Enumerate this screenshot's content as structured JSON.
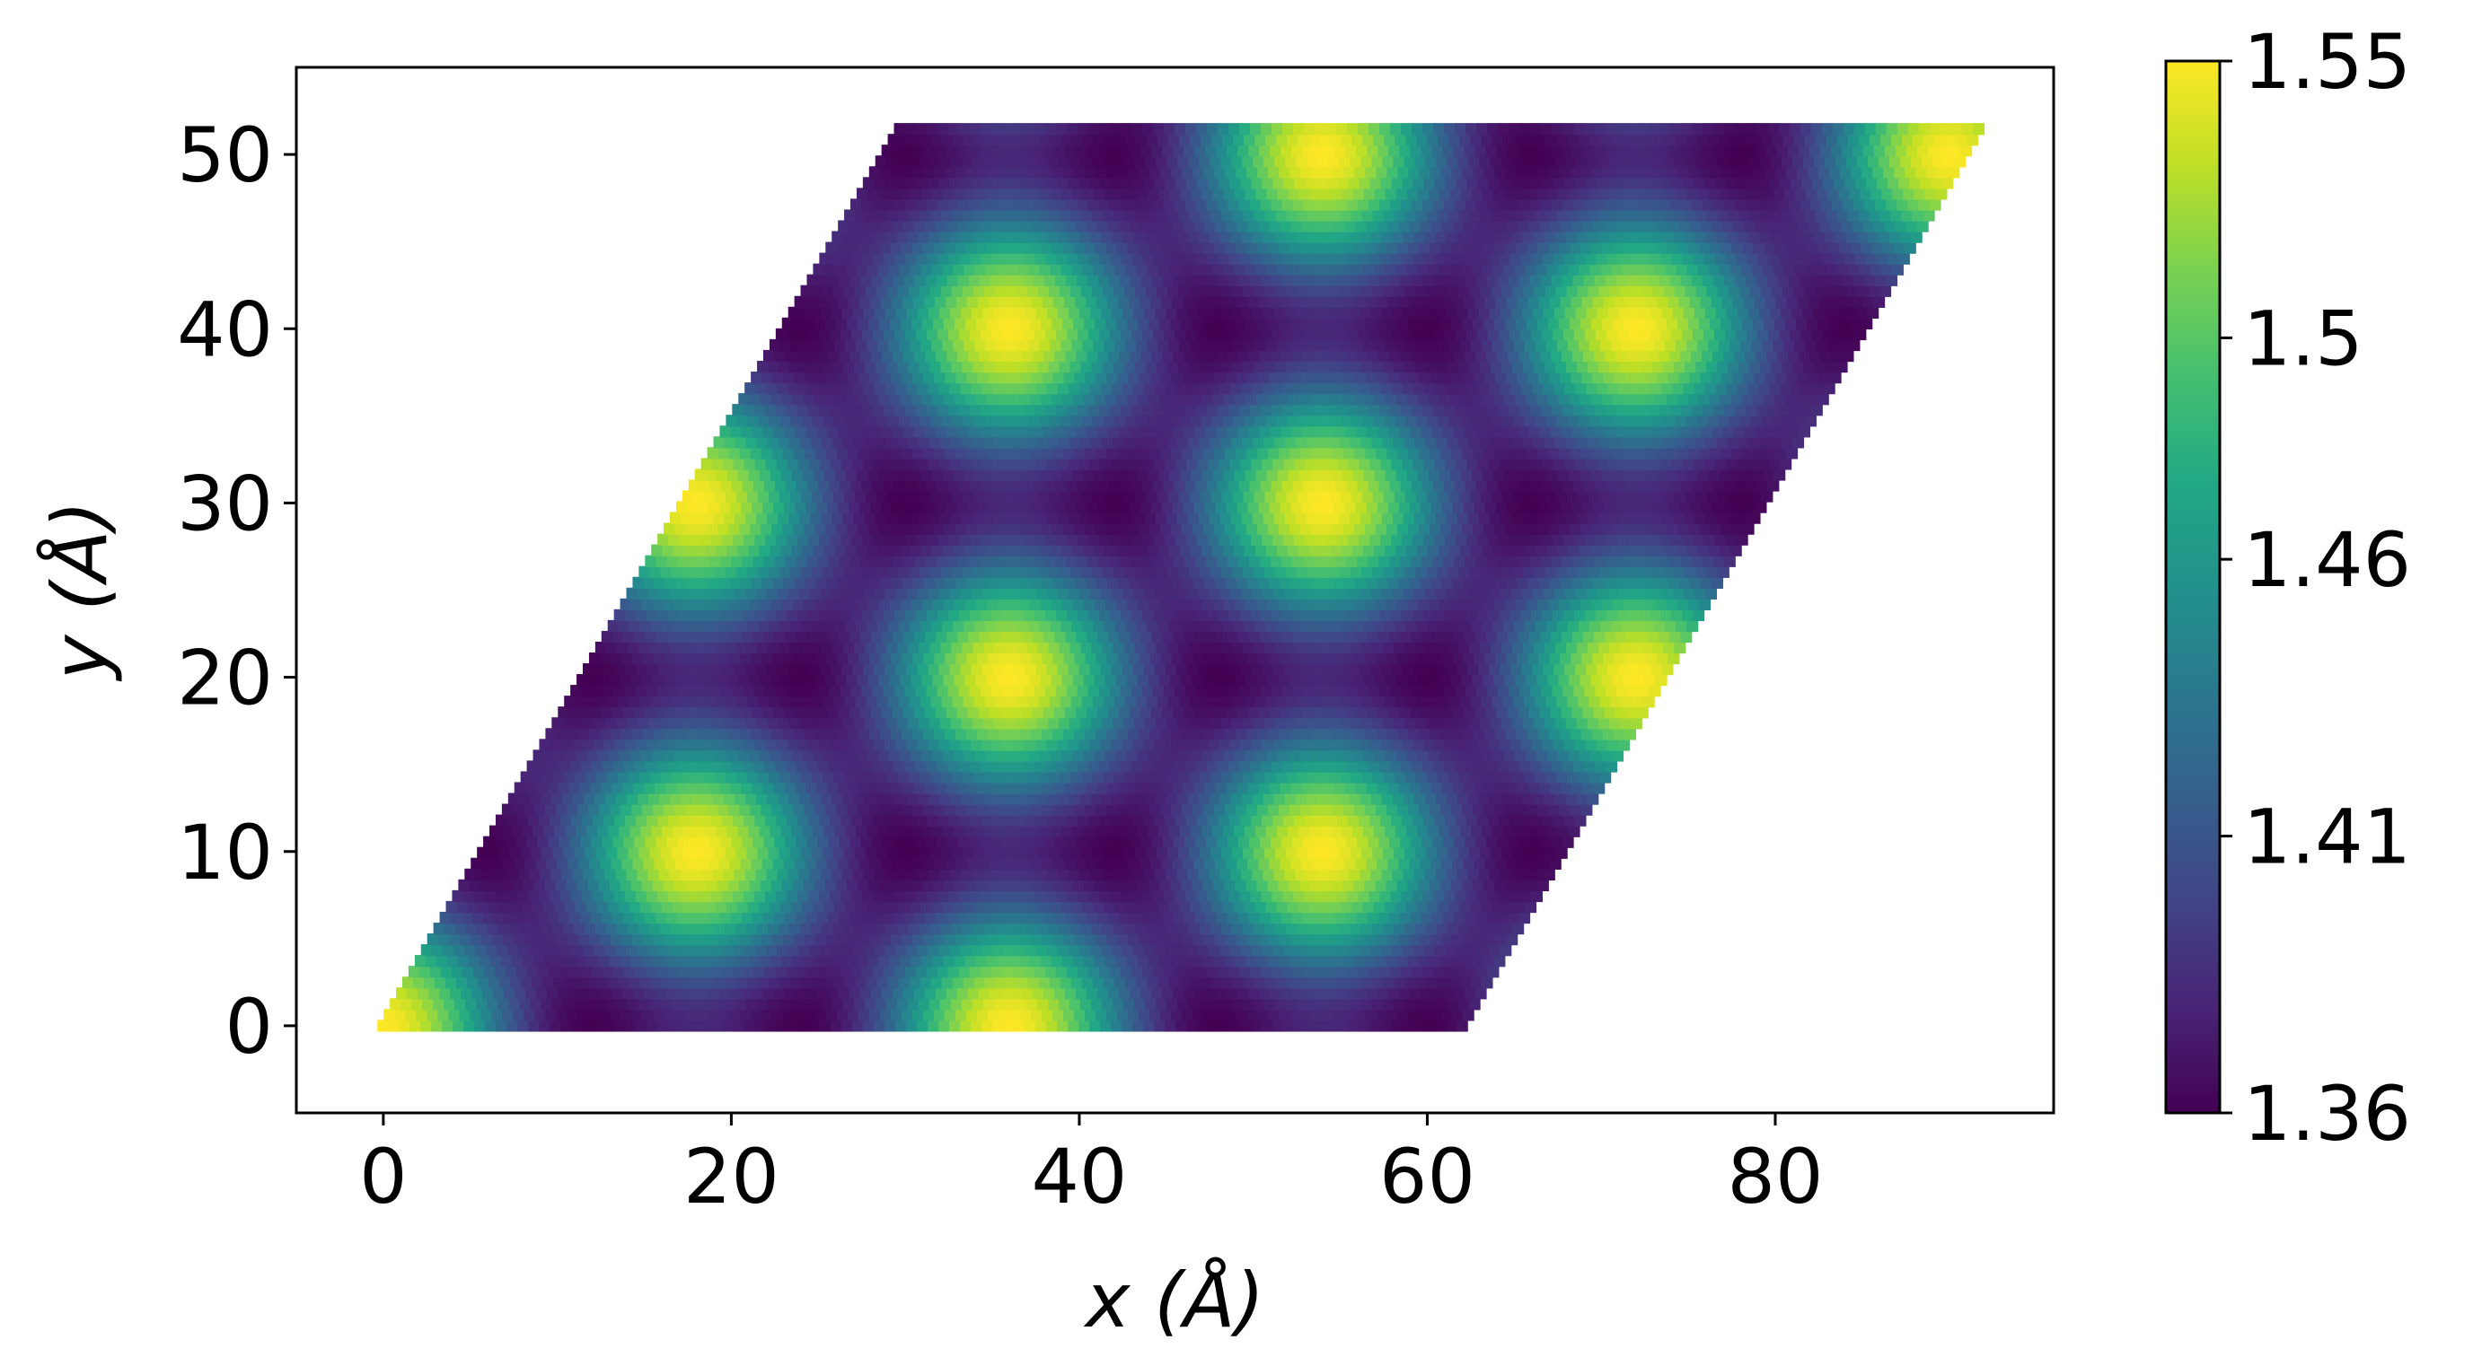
{
  "chart_data": {
    "type": "heatmap",
    "xlabel": "x (Å)",
    "ylabel": "y (Å)",
    "xlim": [
      -5,
      96
    ],
    "ylim": [
      -5,
      55
    ],
    "x_ticks": [
      {
        "value": 0,
        "label": "0"
      },
      {
        "value": 20,
        "label": "20"
      },
      {
        "value": 40,
        "label": "40"
      },
      {
        "value": 60,
        "label": "60"
      },
      {
        "value": 80,
        "label": "80"
      }
    ],
    "y_ticks": [
      {
        "value": 0,
        "label": "0"
      },
      {
        "value": 10,
        "label": "10"
      },
      {
        "value": 20,
        "label": "20"
      },
      {
        "value": 30,
        "label": "30"
      },
      {
        "value": 40,
        "label": "40"
      },
      {
        "value": 50,
        "label": "50"
      }
    ],
    "colormap": "viridis",
    "colorbar": {
      "min": 1.36,
      "max": 1.55,
      "ticks": [
        {
          "value": 1.36,
          "label": "1.36"
        },
        {
          "value": 1.41,
          "label": "1.41"
        },
        {
          "value": 1.46,
          "label": "1.46"
        },
        {
          "value": 1.5,
          "label": "1.5"
        },
        {
          "value": 1.55,
          "label": "1.55"
        }
      ]
    },
    "domain": {
      "shape": "parallelogram",
      "origin": [
        0,
        0
      ],
      "vector_a": [
        62,
        0
      ],
      "vector_b": [
        30,
        52
      ]
    },
    "pattern": {
      "description": "triangular moiré lattice of bright and dark spots",
      "period_x": 18,
      "period_y": 10.4,
      "min_value": 1.36,
      "max_value": 1.55
    }
  }
}
